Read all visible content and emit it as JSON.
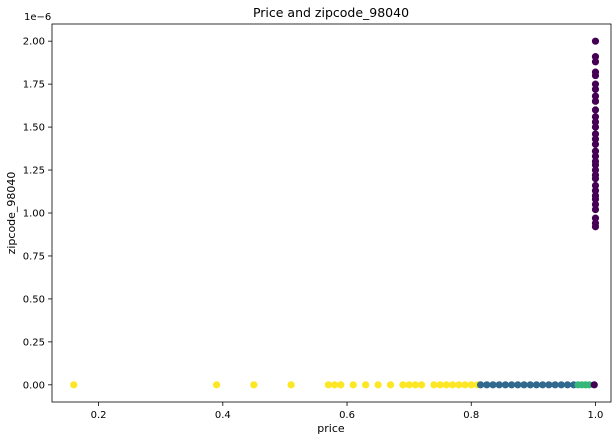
{
  "chart_data": {
    "type": "scatter",
    "title": "Price and zipcode_98040",
    "xlabel": "price",
    "ylabel": "zipcode_98040",
    "y_offset_text": "1e−6",
    "xlim": [
      0.125,
      1.025
    ],
    "ylim": [
      -0.1,
      2.1
    ],
    "x_ticks": [
      0.2,
      0.4,
      0.6,
      0.8,
      1.0
    ],
    "x_tick_labels": [
      "0.2",
      "0.4",
      "0.6",
      "0.8",
      "1.0"
    ],
    "y_ticks": [
      0.0,
      0.25,
      0.5,
      0.75,
      1.0,
      1.25,
      1.5,
      1.75,
      2.0
    ],
    "y_tick_labels": [
      "0.00",
      "0.25",
      "0.50",
      "0.75",
      "1.00",
      "1.25",
      "1.50",
      "1.75",
      "2.00"
    ],
    "grid": false,
    "colormap": "viridis",
    "colors": {
      "yellow": "#fde725",
      "teal": "#31688e",
      "green": "#35b779",
      "purple": "#440154"
    },
    "series": [
      {
        "color_key": "yellow",
        "x": [
          0.16,
          0.39,
          0.45,
          0.51,
          0.57,
          0.58,
          0.59,
          0.61,
          0.63,
          0.65,
          0.67,
          0.69,
          0.7,
          0.71,
          0.72,
          0.74,
          0.75,
          0.76,
          0.77,
          0.78,
          0.79,
          0.8,
          0.81
        ],
        "y": [
          0,
          0,
          0,
          0,
          0,
          0,
          0,
          0,
          0,
          0,
          0,
          0,
          0,
          0,
          0,
          0,
          0,
          0,
          0,
          0,
          0,
          0,
          0
        ]
      },
      {
        "color_key": "teal",
        "x": [
          0.815,
          0.825,
          0.835,
          0.845,
          0.855,
          0.865,
          0.875,
          0.885,
          0.895,
          0.905,
          0.915,
          0.925,
          0.935,
          0.945,
          0.955,
          0.965
        ],
        "y": [
          0,
          0,
          0,
          0,
          0,
          0,
          0,
          0,
          0,
          0,
          0,
          0,
          0,
          0,
          0,
          0
        ]
      },
      {
        "color_key": "green",
        "x": [
          0.972,
          0.978,
          0.984,
          0.99
        ],
        "y": [
          0,
          0,
          0,
          0
        ]
      },
      {
        "color_key": "purple",
        "x": [
          0.998,
          1.0,
          1.0,
          1.0,
          1.0,
          1.0,
          1.0,
          1.0,
          1.0,
          1.0,
          1.0,
          1.0,
          1.0,
          1.0,
          1.0,
          1.0,
          1.0,
          1.0,
          1.0,
          1.0,
          1.0,
          1.0,
          1.0,
          1.0,
          1.0,
          1.0,
          1.0,
          1.0,
          1.0,
          1.0,
          1.0,
          1.0,
          1.0
        ],
        "y": [
          0.0,
          0.92,
          0.94,
          1.02,
          1.05,
          1.08,
          1.1,
          1.13,
          1.16,
          1.2,
          1.22,
          1.25,
          1.28,
          1.3,
          1.33,
          1.36,
          1.4,
          1.43,
          1.46,
          1.5,
          1.53,
          1.56,
          1.6,
          1.65,
          1.68,
          1.72,
          1.75,
          1.8,
          1.82,
          1.88,
          1.91,
          2.0,
          0.97
        ]
      }
    ]
  }
}
